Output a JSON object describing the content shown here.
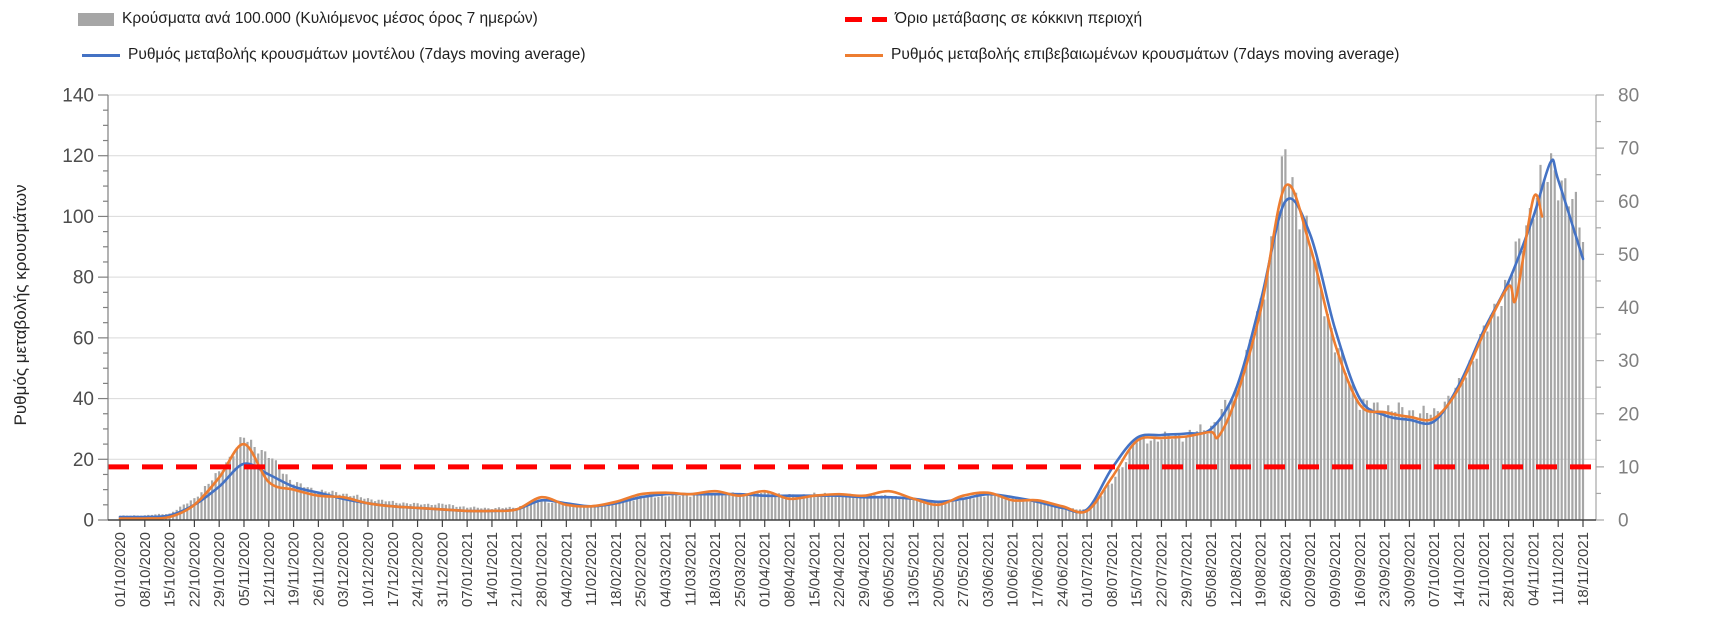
{
  "legend": {
    "items": [
      {
        "label": "Κρούσματα ανά 100.000 (Κυλιόμενος μέσος όρος 7 ημερών)",
        "marker": "bar-swatch",
        "color": "#a6a6a6"
      },
      {
        "label": "Όριο μετάβασης σε κόκκινη περιοχή",
        "marker": "dashed-line",
        "color": "#ff0000"
      },
      {
        "label": "Ρυθμός μεταβολής κρουσμάτων μοντέλου (7days moving average)",
        "marker": "line",
        "color": "#4472c4"
      },
      {
        "label": "Ρυθμός μεταβολής επιβεβαιωμένων κρουσμάτων (7days moving average)",
        "marker": "line",
        "color": "#ed7d31"
      }
    ]
  },
  "chart_data": {
    "type": "combo-bar-line",
    "title": "",
    "ylabel_left": "Ρυθμός μεταβολής κρουσμάτων",
    "ylabel_right": "",
    "xlabel": "",
    "grid": "horizontal",
    "y_left": {
      "min": 0,
      "max": 140,
      "tick_step": 20,
      "minor_step": 5,
      "ticks": [
        0,
        20,
        40,
        60,
        80,
        100,
        120,
        140
      ]
    },
    "y_right": {
      "min": 0,
      "max": 80,
      "tick_step": 10,
      "minor_step": 5,
      "ticks": [
        0,
        10,
        20,
        30,
        40,
        50,
        60,
        70,
        80
      ]
    },
    "x_tick_interval_days": 7,
    "x_labels": [
      "01/10/2020",
      "08/10/2020",
      "15/10/2020",
      "22/10/2020",
      "29/10/2020",
      "05/11/2020",
      "12/11/2020",
      "19/11/2020",
      "26/11/2020",
      "03/12/2020",
      "10/12/2020",
      "17/12/2020",
      "24/12/2020",
      "31/12/2020",
      "07/01/2021",
      "14/01/2021",
      "21/01/2021",
      "28/01/2021",
      "04/02/2021",
      "11/02/2021",
      "18/02/2021",
      "25/02/2021",
      "04/03/2021",
      "11/03/2021",
      "18/03/2021",
      "25/03/2021",
      "01/04/2021",
      "08/04/2021",
      "15/04/2021",
      "22/04/2021",
      "29/04/2021",
      "06/05/2021",
      "13/05/2021",
      "20/05/2021",
      "27/05/2021",
      "03/06/2021",
      "10/06/2021",
      "17/06/2021",
      "24/06/2021",
      "01/07/2021",
      "08/07/2021",
      "15/07/2021",
      "22/07/2021",
      "29/07/2021",
      "05/08/2021",
      "12/08/2021",
      "19/08/2021",
      "26/08/2021",
      "02/09/2021",
      "09/09/2021",
      "16/09/2021",
      "23/09/2021",
      "30/09/2021",
      "07/10/2021",
      "14/10/2021",
      "21/10/2021",
      "28/10/2021",
      "04/11/2021",
      "11/11/2021",
      "18/11/2021"
    ],
    "series": [
      {
        "name": "Κρούσματα ανά 100.000 (Κυλιόμενος μέσος όρος 7 ημερών)",
        "type": "bar",
        "axis": "right",
        "color": "#a6a6a6",
        "values": [
          0.8,
          0.9,
          1.2,
          4,
          9,
          15.5,
          12,
          7,
          5.5,
          5,
          4,
          3.4,
          3,
          3,
          2.4,
          2.2,
          2.4,
          3.6,
          3,
          2.6,
          3.2,
          4.2,
          4.6,
          4.7,
          5,
          4.8,
          5.3,
          4.6,
          4.9,
          4.7,
          4.5,
          4.5,
          4.1,
          3.3,
          3.8,
          4.8,
          4.2,
          3.4,
          2.4,
          1.8,
          7,
          15,
          15.5,
          16,
          17.5,
          24,
          40,
          68,
          52,
          33,
          22,
          21,
          20.5,
          20,
          25,
          35,
          45,
          60,
          65,
          55
        ],
        "extra_points": [
          [
            57.8,
            67
          ]
        ]
      },
      {
        "name": "Ρυθμός μεταβολής κρουσμάτων μοντέλου (7days moving average)",
        "type": "line",
        "axis": "left",
        "color": "#4472c4",
        "values": [
          1,
          1,
          1.5,
          5,
          11,
          18.5,
          15,
          11,
          9,
          7,
          5.5,
          4.5,
          4,
          3.5,
          3,
          3,
          3.5,
          6.5,
          5.5,
          4.5,
          5.5,
          7.5,
          8.5,
          8.5,
          8.5,
          8.5,
          8,
          8,
          8,
          8,
          7.5,
          7.5,
          7,
          6,
          7,
          8.5,
          7.5,
          6,
          4,
          3.5,
          17,
          27,
          28,
          28.5,
          30,
          43,
          72,
          105,
          94,
          63,
          40,
          34.5,
          33,
          32.5,
          44.5,
          62.5,
          78.5,
          100,
          112,
          86
        ],
        "extra_points": [
          [
            57.7,
            118
          ]
        ]
      },
      {
        "name": "Ρυθμός μεταβολής επιβεβαιωμένων κρουσμάτων (7days moving average)",
        "type": "line",
        "axis": "left",
        "color": "#ed7d31",
        "values": [
          0.5,
          0.5,
          1,
          5,
          14,
          25,
          12.5,
          10,
          8,
          7.5,
          5.5,
          4.5,
          4,
          3.5,
          3,
          3,
          3.5,
          7.5,
          5,
          4.5,
          6,
          8.5,
          9,
          8.5,
          9.5,
          8,
          9.5,
          7,
          8,
          8.5,
          8,
          9.5,
          7,
          5,
          8,
          9,
          6.5,
          6.5,
          4.5,
          3,
          14,
          26,
          27,
          27.5,
          29,
          40,
          69,
          110,
          90,
          58,
          38,
          35.5,
          34,
          33.5,
          43.5,
          61.5,
          77,
          106,
          null,
          null
        ],
        "extra_points": [
          [
            44.3,
            27.5
          ],
          [
            56.3,
            73
          ],
          [
            57.35,
            100
          ]
        ]
      },
      {
        "name": "Όριο μετάβασης σε κόκκινη περιοχή",
        "type": "threshold",
        "axis": "right",
        "color": "#ff0000",
        "value": 10
      }
    ]
  }
}
